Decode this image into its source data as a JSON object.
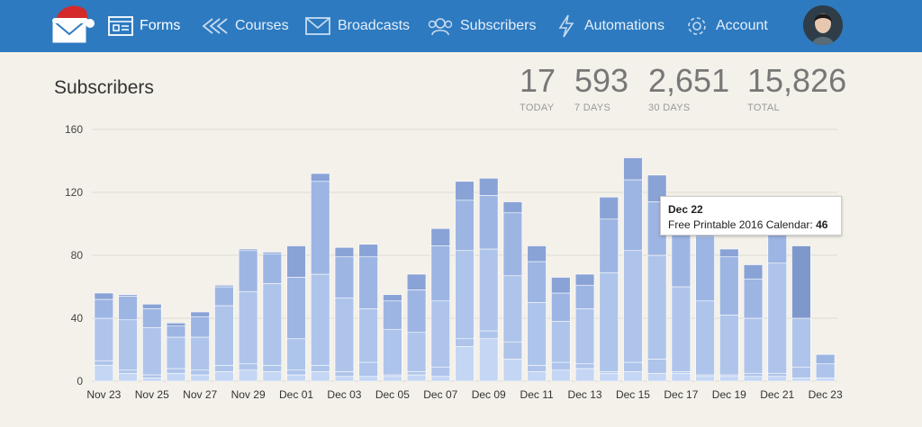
{
  "nav": {
    "items": [
      {
        "label": "Forms",
        "icon": "forms-icon"
      },
      {
        "label": "Courses",
        "icon": "courses-icon"
      },
      {
        "label": "Broadcasts",
        "icon": "broadcasts-icon"
      },
      {
        "label": "Subscribers",
        "icon": "subscribers-icon"
      },
      {
        "label": "Automations",
        "icon": "automations-icon"
      },
      {
        "label": "Account",
        "icon": "gear-icon"
      }
    ]
  },
  "page": {
    "title": "Subscribers"
  },
  "stats": [
    {
      "value": "17",
      "label": "TODAY"
    },
    {
      "value": "593",
      "label": "7 DAYS"
    },
    {
      "value": "2,651",
      "label": "30 DAYS"
    },
    {
      "value": "15,826",
      "label": "TOTAL"
    }
  ],
  "tooltip": {
    "date": "Dec 22",
    "label": "Free Printable 2016 Calendar:",
    "value": "46"
  },
  "colors": {
    "topbar": "#2d7ac0",
    "seriesA": "#9db5e3",
    "seriesB": "#aec4ea",
    "seriesC": "#c4d6f4",
    "seriesD": "#8aa3d6"
  },
  "chart_data": {
    "type": "bar",
    "stacked": true,
    "ylim": [
      0,
      160
    ],
    "yticks": [
      0,
      40,
      80,
      120,
      160
    ],
    "xtick_labels": [
      "Nov 23",
      "Nov 25",
      "Nov 27",
      "Nov 29",
      "Dec 01",
      "Dec 03",
      "Dec 05",
      "Dec 07",
      "Dec 09",
      "Dec 11",
      "Dec 13",
      "Dec 15",
      "Dec 17",
      "Dec 19",
      "Dec 21",
      "Dec 23"
    ],
    "categories": [
      "Nov 23",
      "Nov 24",
      "Nov 25",
      "Nov 26",
      "Nov 27",
      "Nov 28",
      "Nov 29",
      "Nov 30",
      "Dec 01",
      "Dec 02",
      "Dec 03",
      "Dec 04",
      "Dec 05",
      "Dec 06",
      "Dec 07",
      "Dec 08",
      "Dec 09",
      "Dec 10",
      "Dec 11",
      "Dec 12",
      "Dec 13",
      "Dec 14",
      "Dec 15",
      "Dec 16",
      "Dec 17",
      "Dec 18",
      "Dec 19",
      "Dec 20",
      "Dec 21",
      "Dec 22",
      "Dec 23"
    ],
    "totals": [
      56,
      55,
      49,
      37,
      44,
      61,
      84,
      82,
      86,
      132,
      85,
      87,
      55,
      68,
      97,
      127,
      129,
      114,
      86,
      66,
      68,
      117,
      142,
      131,
      97,
      96,
      84,
      74,
      97,
      86,
      17
    ],
    "segments": [
      [
        10,
        3,
        27,
        12,
        4
      ],
      [
        5,
        2,
        32,
        15,
        1
      ],
      [
        2,
        2,
        30,
        12,
        3
      ],
      [
        5,
        3,
        20,
        7,
        2
      ],
      [
        4,
        3,
        21,
        13,
        3
      ],
      [
        6,
        4,
        38,
        12,
        1
      ],
      [
        7,
        4,
        46,
        26,
        1
      ],
      [
        6,
        4,
        52,
        19,
        1
      ],
      [
        4,
        3,
        20,
        39,
        20
      ],
      [
        6,
        4,
        58,
        59,
        5
      ],
      [
        3,
        3,
        47,
        26,
        6
      ],
      [
        3,
        9,
        34,
        33,
        8
      ],
      [
        3,
        1,
        29,
        18,
        4
      ],
      [
        4,
        2,
        25,
        27,
        10
      ],
      [
        3,
        6,
        42,
        35,
        11
      ],
      [
        22,
        5,
        56,
        32,
        12
      ],
      [
        27,
        5,
        52,
        34,
        11
      ],
      [
        14,
        11,
        42,
        40,
        7
      ],
      [
        6,
        4,
        40,
        26,
        10
      ],
      [
        7,
        5,
        26,
        18,
        10
      ],
      [
        8,
        3,
        35,
        15,
        7
      ],
      [
        5,
        1,
        63,
        34,
        14
      ],
      [
        6,
        6,
        71,
        45,
        14
      ],
      [
        5,
        9,
        66,
        34,
        17
      ],
      [
        5,
        1,
        54,
        33,
        4
      ],
      [
        3,
        1,
        47,
        41,
        4
      ],
      [
        3,
        1,
        38,
        37,
        5
      ],
      [
        3,
        2,
        35,
        25,
        9
      ],
      [
        3,
        2,
        70,
        18,
        4
      ],
      [
        2,
        7,
        31,
        46,
        0
      ],
      [
        2,
        0,
        9,
        6,
        0
      ]
    ],
    "highlight_index": 29
  }
}
